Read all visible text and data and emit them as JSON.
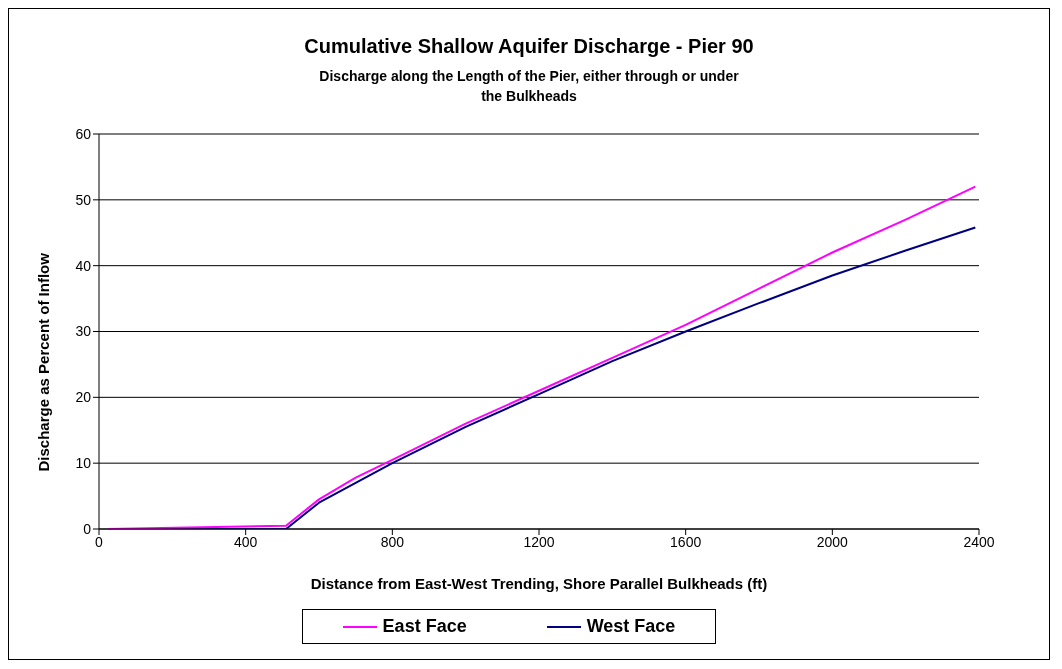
{
  "chart_data": {
    "type": "line",
    "title": "Cumulative Shallow Aquifer Discharge - Pier 90",
    "subtitle": "Discharge along the Length of the Pier, either through or under the Bulkheads",
    "xlabel": "Distance from East-West Trending, Shore Parallel Bulkheads (ft)",
    "ylabel": "Discharge as Percent of Inflow",
    "x": [
      25,
      510,
      600,
      700,
      800,
      1000,
      1200,
      1400,
      1600,
      1800,
      2000,
      2200,
      2390
    ],
    "series": [
      {
        "name": "West Face",
        "color": "#000080",
        "values": [
          0,
          0,
          4,
          7,
          10,
          15.5,
          20.5,
          25.5,
          30,
          34.3,
          38.5,
          42.3,
          45.8
        ]
      },
      {
        "name": "East Face",
        "color": "#ff00ff",
        "values": [
          0,
          0.5,
          4.5,
          7.8,
          10.5,
          16,
          21,
          26,
          31,
          36.5,
          42,
          47,
          52
        ]
      }
    ],
    "xlim": [
      0,
      2400
    ],
    "xticks": [
      0,
      400,
      800,
      1200,
      1600,
      2000,
      2400
    ],
    "ylim": [
      0,
      60
    ],
    "yticks": [
      0,
      10,
      20,
      30,
      40,
      50,
      60
    ],
    "grid": "y",
    "legend": "bottom",
    "marker": "none",
    "line_style": "solid"
  }
}
